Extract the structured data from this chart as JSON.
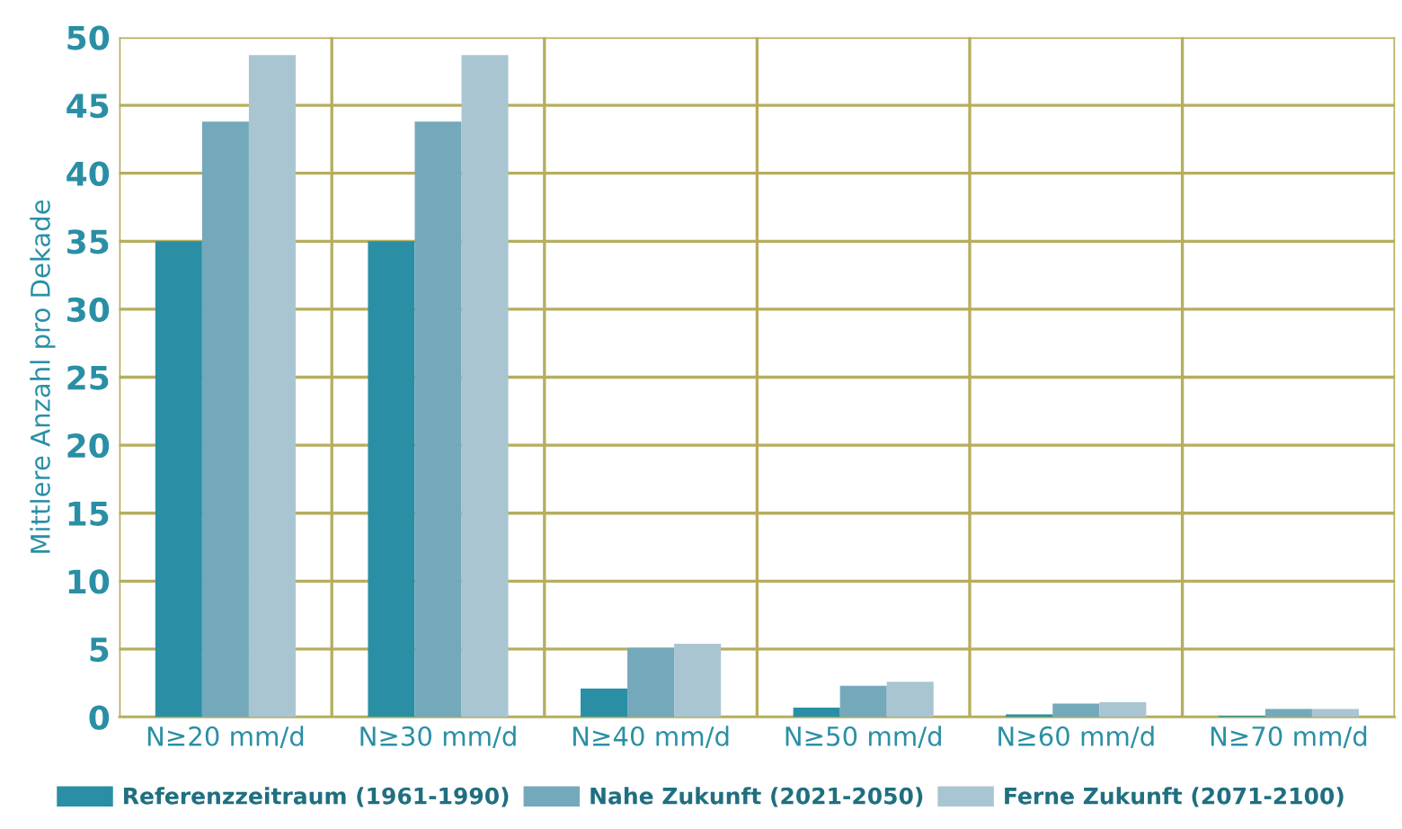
{
  "chart_data": {
    "type": "bar",
    "ylabel": "Mittlere Anzahl pro Dekade",
    "categories": [
      "N≥20 mm/d",
      "N≥30 mm/d",
      "N≥40 mm/d",
      "N≥50 mm/d",
      "N≥60 mm/d",
      "N≥70 mm/d"
    ],
    "series": [
      {
        "name": "Referenzzeitraum (1961-1990)",
        "color": "#2a8fa5",
        "values": [
          35,
          35,
          2.1,
          0.7,
          0.2,
          0.1
        ]
      },
      {
        "name": "Nahe Zukunft (2021-2050)",
        "color": "#74a9bb",
        "values": [
          43.8,
          43.8,
          5.1,
          2.3,
          1.0,
          0.6
        ]
      },
      {
        "name": "Ferne Zukunft (2071-2100)",
        "color": "#aac5d2",
        "values": [
          48.7,
          48.7,
          5.4,
          2.6,
          1.1,
          0.6
        ]
      }
    ],
    "ylim": [
      0,
      50
    ],
    "yticks": [
      0,
      5,
      10,
      15,
      20,
      25,
      30,
      35,
      40,
      45,
      50
    ],
    "grid": true,
    "legend": "bottom"
  }
}
